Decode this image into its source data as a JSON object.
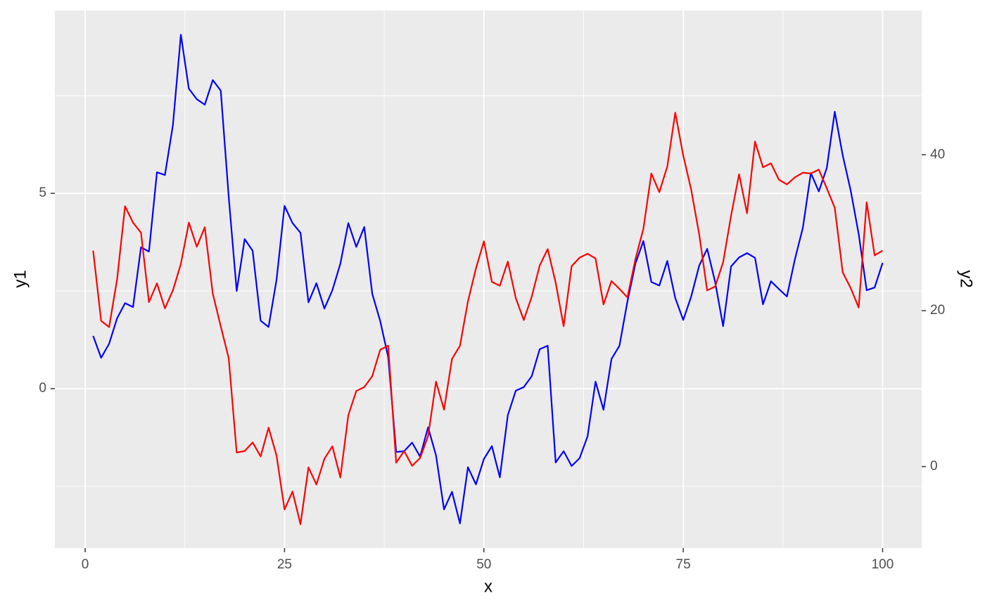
{
  "chart_data": {
    "type": "line",
    "x_label": "x",
    "y_label": "y1",
    "y2_label": "y2",
    "x": [
      1,
      2,
      3,
      4,
      5,
      6,
      7,
      8,
      9,
      10,
      11,
      12,
      13,
      14,
      15,
      16,
      17,
      18,
      19,
      20,
      21,
      22,
      23,
      24,
      25,
      26,
      27,
      28,
      29,
      30,
      31,
      32,
      33,
      34,
      35,
      36,
      37,
      38,
      39,
      40,
      41,
      42,
      43,
      44,
      45,
      46,
      47,
      48,
      49,
      50,
      51,
      52,
      53,
      54,
      55,
      56,
      57,
      58,
      59,
      60,
      61,
      62,
      63,
      64,
      65,
      66,
      67,
      68,
      69,
      70,
      71,
      72,
      73,
      74,
      75,
      76,
      77,
      78,
      79,
      80,
      81,
      82,
      83,
      84,
      85,
      86,
      87,
      88,
      89,
      90,
      91,
      92,
      93,
      94,
      95,
      96,
      97,
      98,
      99,
      100
    ],
    "series": [
      {
        "color": "blue",
        "axis": "y",
        "values": [
          1.35,
          0.79,
          1.15,
          1.8,
          2.19,
          2.09,
          3.62,
          3.51,
          5.54,
          5.47,
          6.74,
          9.06,
          7.68,
          7.41,
          7.27,
          7.9,
          7.63,
          4.91,
          2.5,
          3.83,
          3.53,
          1.74,
          1.58,
          2.79,
          4.68,
          4.24,
          3.99,
          2.21,
          2.7,
          2.05,
          2.52,
          3.2,
          4.24,
          3.63,
          4.14,
          2.43,
          1.73,
          0.81,
          -1.62,
          -1.6,
          -1.38,
          -1.74,
          -0.99,
          -1.71,
          -3.09,
          -2.64,
          -3.45,
          -2.01,
          -2.45,
          -1.8,
          -1.47,
          -2.27,
          -0.68,
          -0.05,
          0.04,
          0.32,
          1.01,
          1.1,
          -1.89,
          -1.6,
          -1.98,
          -1.78,
          -1.22,
          0.18,
          -0.54,
          0.76,
          1.1,
          2.23,
          3.2,
          3.78,
          2.73,
          2.64,
          3.27,
          2.32,
          1.76,
          2.36,
          3.15,
          3.58,
          2.73,
          1.6,
          3.13,
          3.36,
          3.47,
          3.35,
          2.16,
          2.75,
          2.55,
          2.36,
          3.31,
          4.12,
          5.52,
          5.05,
          5.65,
          7.09,
          5.97,
          5.07,
          3.96,
          2.52,
          2.59,
          3.22
        ]
      },
      {
        "color": "red",
        "axis": "y2",
        "values": [
          27.7,
          18.7,
          17.9,
          24.0,
          33.4,
          31.3,
          30.0,
          21.1,
          23.5,
          20.3,
          22.6,
          26.0,
          31.3,
          28.2,
          30.7,
          22.2,
          18.0,
          13.9,
          1.8,
          2.0,
          3.1,
          1.3,
          5.0,
          1.4,
          -5.5,
          -3.2,
          -7.4,
          -0.1,
          -2.3,
          1.0,
          2.6,
          -1.4,
          6.6,
          9.7,
          10.2,
          11.6,
          15.0,
          15.5,
          0.5,
          2.0,
          0.1,
          1.1,
          3.9,
          10.9,
          7.3,
          13.8,
          15.5,
          21.2,
          25.4,
          28.9,
          23.7,
          23.2,
          26.3,
          21.6,
          18.8,
          21.8,
          25.8,
          27.9,
          23.6,
          18.0,
          25.7,
          26.8,
          27.3,
          26.7,
          20.8,
          23.8,
          22.8,
          21.7,
          26.6,
          30.5,
          37.6,
          35.2,
          38.5,
          45.4,
          39.9,
          35.5,
          29.8,
          22.6,
          23.1,
          26.2,
          32.2,
          37.5,
          32.5,
          41.7,
          38.4,
          38.9,
          36.8,
          36.2,
          37.1,
          37.7,
          37.6,
          38.1,
          35.7,
          33.2,
          24.9,
          22.9,
          20.4,
          33.9,
          27.1,
          27.7
        ]
      }
    ],
    "xlim": [
      -3.8,
      104.9
    ],
    "xticks": [
      0,
      25,
      50,
      75,
      100
    ],
    "xminor": [
      12.5,
      37.5,
      62.5,
      87.5
    ],
    "ylim": [
      -4.08,
      9.68
    ],
    "yticks": [
      0,
      5
    ],
    "yminor": [
      -2.5,
      2.5,
      7.5
    ],
    "y2lim": [
      -10.45,
      58.5
    ],
    "y2ticks": [
      0,
      20,
      40
    ],
    "grid": true,
    "background": "#ebebeb"
  }
}
